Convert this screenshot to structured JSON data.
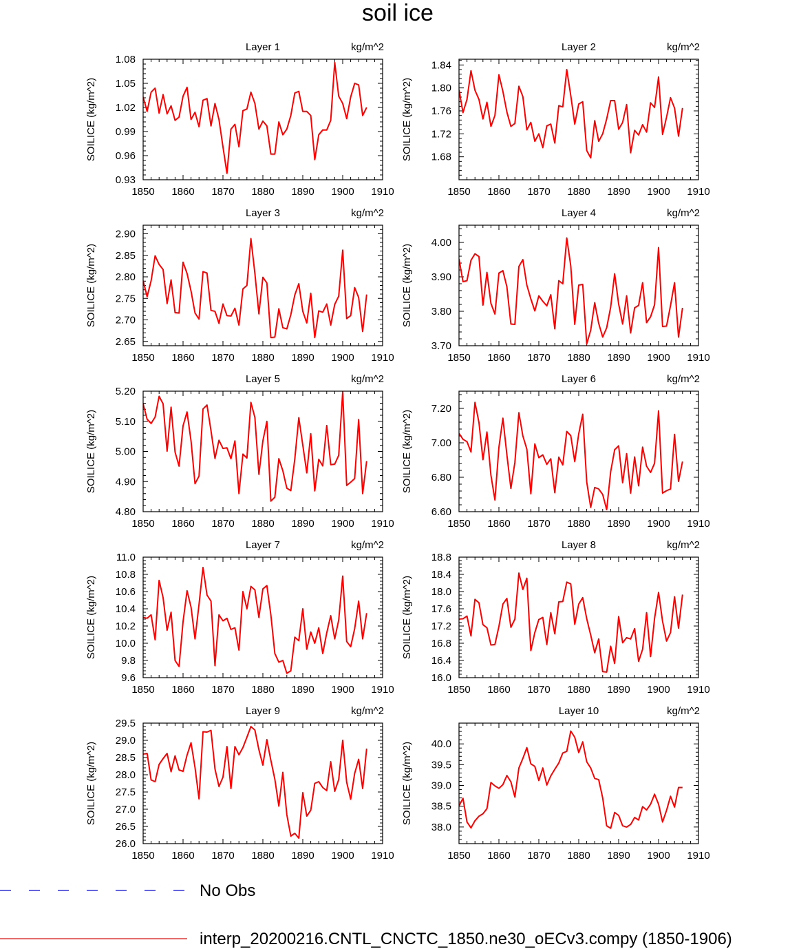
{
  "figure": {
    "title": "soil ice",
    "x_start": 1850
  },
  "legend": {
    "items": [
      {
        "label": "No Obs",
        "color": "#0000ff",
        "style": "dashed"
      },
      {
        "label": "interp_20200216.CNTL_CNCTC_1850.ne30_oECv3.compy (1850-1906)",
        "color": "#ff0000",
        "style": "solid"
      }
    ]
  },
  "chart_data": [
    {
      "type": "line",
      "title": "Layer 1",
      "units": "kg/m^2",
      "ylabel": "SOILICE  (kg/m^2)",
      "xlim": [
        1850,
        1910
      ],
      "xticks": [
        1850,
        1860,
        1870,
        1880,
        1890,
        1900,
        1910
      ],
      "ylim": [
        0.93,
        1.08
      ],
      "yticks": [
        "0.93",
        "0.96",
        "0.99",
        "1.02",
        "1.05",
        "1.08"
      ],
      "series": [
        {
          "color": "#ff0000",
          "values": [
            1.033,
            1.015,
            1.039,
            1.044,
            1.013,
            1.036,
            1.012,
            1.022,
            1.004,
            1.008,
            1.034,
            1.045,
            1.005,
            1.014,
            0.996,
            1.029,
            1.031,
            0.997,
            1.025,
            1.005,
            0.971,
            0.938,
            0.993,
            0.999,
            0.971,
            1.016,
            1.018,
            1.039,
            1.025,
            0.993,
            1.003,
            0.997,
            0.962,
            0.962,
            1.002,
            0.986,
            0.993,
            1.01,
            1.038,
            1.04,
            1.015,
            1.015,
            1.01,
            0.955,
            0.986,
            0.992,
            0.992,
            1.004,
            1.076,
            1.034,
            1.025,
            1.006,
            1.033,
            1.05,
            1.048,
            1.01,
            1.02
          ]
        }
      ]
    },
    {
      "type": "line",
      "title": "Layer 2",
      "units": "kg/m^2",
      "ylabel": "SOILICE  (kg/m^2)",
      "xlim": [
        1850,
        1910
      ],
      "xticks": [
        1850,
        1860,
        1870,
        1880,
        1890,
        1900,
        1910
      ],
      "ylim": [
        1.64,
        1.85
      ],
      "yticks": [
        "1.68",
        "1.72",
        "1.76",
        "1.80",
        "1.84"
      ],
      "series": [
        {
          "color": "#ff0000",
          "values": [
            1.797,
            1.757,
            1.78,
            1.83,
            1.796,
            1.78,
            1.746,
            1.775,
            1.733,
            1.752,
            1.823,
            1.794,
            1.758,
            1.733,
            1.738,
            1.803,
            1.785,
            1.727,
            1.74,
            1.707,
            1.72,
            1.696,
            1.734,
            1.737,
            1.704,
            1.769,
            1.767,
            1.832,
            1.787,
            1.737,
            1.772,
            1.776,
            1.691,
            1.678,
            1.743,
            1.707,
            1.72,
            1.746,
            1.778,
            1.778,
            1.728,
            1.74,
            1.771,
            1.687,
            1.726,
            1.718,
            1.736,
            1.723,
            1.774,
            1.766,
            1.819,
            1.719,
            1.749,
            1.783,
            1.765,
            1.716,
            1.765
          ]
        }
      ]
    },
    {
      "type": "line",
      "title": "Layer 3",
      "units": "kg/m^2",
      "ylabel": "SOILICE  (kg/m^2)",
      "xlim": [
        1850,
        1910
      ],
      "xticks": [
        1850,
        1860,
        1870,
        1880,
        1890,
        1900,
        1910
      ],
      "ylim": [
        2.64,
        2.92
      ],
      "yticks": [
        "2.65",
        "2.70",
        "2.75",
        "2.80",
        "2.85",
        "2.90"
      ],
      "series": [
        {
          "color": "#ff0000",
          "values": [
            2.791,
            2.754,
            2.791,
            2.849,
            2.829,
            2.817,
            2.738,
            2.793,
            2.717,
            2.716,
            2.834,
            2.808,
            2.767,
            2.716,
            2.702,
            2.812,
            2.809,
            2.722,
            2.72,
            2.692,
            2.737,
            2.71,
            2.709,
            2.727,
            2.688,
            2.772,
            2.78,
            2.889,
            2.808,
            2.714,
            2.799,
            2.786,
            2.659,
            2.66,
            2.726,
            2.682,
            2.679,
            2.712,
            2.758,
            2.784,
            2.72,
            2.693,
            2.762,
            2.659,
            2.721,
            2.718,
            2.737,
            2.688,
            2.736,
            2.755,
            2.862,
            2.703,
            2.71,
            2.775,
            2.752,
            2.673,
            2.759
          ]
        }
      ]
    },
    {
      "type": "line",
      "title": "Layer 4",
      "units": "kg/m^2",
      "ylabel": "SOILICE  (kg/m^2)",
      "xlim": [
        1850,
        1910
      ],
      "xticks": [
        1850,
        1860,
        1870,
        1880,
        1890,
        1900,
        1910
      ],
      "ylim": [
        3.7,
        4.05
      ],
      "yticks": [
        "3.70",
        "3.80",
        "3.90",
        "4.00"
      ],
      "series": [
        {
          "color": "#ff0000",
          "values": [
            3.952,
            3.886,
            3.889,
            3.948,
            3.967,
            3.959,
            3.818,
            3.913,
            3.823,
            3.792,
            3.911,
            3.918,
            3.871,
            3.763,
            3.762,
            3.93,
            3.95,
            3.876,
            3.836,
            3.801,
            3.845,
            3.829,
            3.816,
            3.848,
            3.749,
            3.889,
            3.88,
            4.013,
            3.932,
            3.762,
            3.876,
            3.878,
            3.705,
            3.745,
            3.825,
            3.765,
            3.725,
            3.752,
            3.812,
            3.909,
            3.821,
            3.763,
            3.845,
            3.737,
            3.81,
            3.817,
            3.883,
            3.767,
            3.784,
            3.819,
            3.985,
            3.756,
            3.757,
            3.817,
            3.883,
            3.725,
            3.81
          ]
        }
      ]
    },
    {
      "type": "line",
      "title": "Layer 5",
      "units": "kg/m^2",
      "ylabel": "SOILICE  (kg/m^2)",
      "xlim": [
        1850,
        1910
      ],
      "xticks": [
        1850,
        1860,
        1870,
        1880,
        1890,
        1900,
        1910
      ],
      "ylim": [
        4.8,
        5.2
      ],
      "yticks": [
        "4.80",
        "4.90",
        "5.00",
        "5.10",
        "5.20"
      ],
      "series": [
        {
          "color": "#ff0000",
          "values": [
            5.158,
            5.107,
            5.093,
            5.114,
            5.183,
            5.158,
            5.001,
            5.147,
            4.998,
            4.951,
            5.085,
            5.131,
            5.035,
            4.893,
            4.918,
            5.141,
            5.154,
            5.069,
            4.977,
            5.037,
            5.01,
            5.012,
            4.976,
            5.035,
            4.86,
            4.991,
            4.978,
            5.163,
            5.113,
            4.924,
            5.035,
            5.1,
            4.835,
            4.848,
            4.976,
            4.936,
            4.878,
            4.87,
            4.975,
            5.112,
            5.021,
            4.929,
            5.059,
            4.869,
            4.974,
            4.952,
            5.086,
            4.956,
            4.958,
            4.987,
            5.198,
            4.887,
            4.898,
            4.91,
            5.106,
            4.86,
            4.968
          ]
        }
      ]
    },
    {
      "type": "line",
      "title": "Layer 6",
      "units": "kg/m^2",
      "ylabel": "SOILICE  (kg/m^2)",
      "xlim": [
        1850,
        1910
      ],
      "xticks": [
        1850,
        1860,
        1870,
        1880,
        1890,
        1900,
        1910
      ],
      "ylim": [
        6.6,
        7.3
      ],
      "yticks": [
        "6.60",
        "6.80",
        "7.00",
        "7.20"
      ],
      "series": [
        {
          "color": "#ff0000",
          "values": [
            7.055,
            7.021,
            7.007,
            6.947,
            7.235,
            7.118,
            6.902,
            7.063,
            6.812,
            6.668,
            6.974,
            7.143,
            6.93,
            6.735,
            6.886,
            7.175,
            7.04,
            6.963,
            6.704,
            6.994,
            6.914,
            6.93,
            6.875,
            6.907,
            6.71,
            6.917,
            6.872,
            7.066,
            7.042,
            6.891,
            7.053,
            7.166,
            6.773,
            6.625,
            6.741,
            6.732,
            6.7,
            6.612,
            6.832,
            6.96,
            6.983,
            6.768,
            6.937,
            6.708,
            6.918,
            6.75,
            6.975,
            6.864,
            6.828,
            6.881,
            7.186,
            6.708,
            6.722,
            6.732,
            7.049,
            6.776,
            6.891
          ]
        }
      ]
    },
    {
      "type": "line",
      "title": "Layer 7",
      "units": "kg/m^2",
      "ylabel": "SOILICE  (kg/m^2)",
      "xlim": [
        1850,
        1910
      ],
      "xticks": [
        1850,
        1860,
        1870,
        1880,
        1890,
        1900,
        1910
      ],
      "ylim": [
        9.6,
        11.0
      ],
      "yticks": [
        "9.6",
        "9.8",
        "10.0",
        "10.2",
        "10.4",
        "10.6",
        "10.8",
        "11.0"
      ],
      "series": [
        {
          "color": "#ff0000",
          "values": [
            10.3,
            10.29,
            10.33,
            10.04,
            10.73,
            10.53,
            10.15,
            10.36,
            9.8,
            9.73,
            10.25,
            10.61,
            10.42,
            10.05,
            10.45,
            10.88,
            10.56,
            10.49,
            9.74,
            10.33,
            10.26,
            10.29,
            10.16,
            10.18,
            9.92,
            10.6,
            10.4,
            10.66,
            10.62,
            10.3,
            10.63,
            10.67,
            10.33,
            9.88,
            9.78,
            9.8,
            9.65,
            9.68,
            10.07,
            10.03,
            10.4,
            9.93,
            10.13,
            10.0,
            10.18,
            9.88,
            10.12,
            10.32,
            10.05,
            10.27,
            10.78,
            10.02,
            9.96,
            10.17,
            10.49,
            10.05,
            10.35
          ]
        }
      ]
    },
    {
      "type": "line",
      "title": "Layer 8",
      "units": "kg/m^2",
      "ylabel": "SOILICE  (kg/m^2)",
      "xlim": [
        1850,
        1910
      ],
      "xticks": [
        1850,
        1860,
        1870,
        1880,
        1890,
        1900,
        1910
      ],
      "ylim": [
        16.0,
        18.8
      ],
      "yticks": [
        "16.0",
        "16.4",
        "16.8",
        "17.2",
        "17.6",
        "18.0",
        "18.4",
        "18.8"
      ],
      "series": [
        {
          "color": "#ff0000",
          "values": [
            17.36,
            17.37,
            17.43,
            16.97,
            17.82,
            17.74,
            17.23,
            17.16,
            16.76,
            16.77,
            17.19,
            17.71,
            17.84,
            17.17,
            17.36,
            18.43,
            18.05,
            18.31,
            16.63,
            17.05,
            17.35,
            17.4,
            16.77,
            17.51,
            17.02,
            17.76,
            17.77,
            18.22,
            18.18,
            17.24,
            17.71,
            17.86,
            17.37,
            16.99,
            16.58,
            16.9,
            16.14,
            16.13,
            16.73,
            16.33,
            17.42,
            16.81,
            16.93,
            16.9,
            17.14,
            16.38,
            16.66,
            17.51,
            16.49,
            17.38,
            17.98,
            17.31,
            16.85,
            17.05,
            17.88,
            17.15,
            17.93
          ]
        }
      ]
    },
    {
      "type": "line",
      "title": "Layer 9",
      "units": "kg/m^2",
      "ylabel": "SOILICE  (kg/m^2)",
      "xlim": [
        1850,
        1910
      ],
      "xticks": [
        1850,
        1860,
        1870,
        1880,
        1890,
        1900,
        1910
      ],
      "ylim": [
        26.0,
        29.5
      ],
      "yticks": [
        "26.0",
        "26.5",
        "27.0",
        "27.5",
        "28.0",
        "28.5",
        "29.0",
        "29.5"
      ],
      "series": [
        {
          "color": "#ff0000",
          "values": [
            28.6,
            28.62,
            27.85,
            27.8,
            28.3,
            28.47,
            28.62,
            28.09,
            28.55,
            28.14,
            28.1,
            28.57,
            28.93,
            28.21,
            27.3,
            29.25,
            29.24,
            29.29,
            28.17,
            27.66,
            27.93,
            28.82,
            27.6,
            28.82,
            28.58,
            28.79,
            29.09,
            29.4,
            29.3,
            28.73,
            28.28,
            29.02,
            28.42,
            27.87,
            27.09,
            28.07,
            26.84,
            26.22,
            26.3,
            26.16,
            27.48,
            26.8,
            26.97,
            27.75,
            27.8,
            27.63,
            27.54,
            28.38,
            27.52,
            27.86,
            29.0,
            27.78,
            27.29,
            28.04,
            28.45,
            27.6,
            28.76
          ]
        }
      ]
    },
    {
      "type": "line",
      "title": "Layer 10",
      "units": "kg/m^2",
      "ylabel": "SOILICE  (kg/m^2)",
      "xlim": [
        1850,
        1910
      ],
      "xticks": [
        1850,
        1860,
        1870,
        1880,
        1890,
        1900,
        1910
      ],
      "ylim": [
        37.6,
        40.5
      ],
      "yticks": [
        "38.0",
        "38.5",
        "39.0",
        "39.5",
        "40.0"
      ],
      "series": [
        {
          "color": "#ff0000",
          "values": [
            38.51,
            38.69,
            38.12,
            37.98,
            38.15,
            38.26,
            38.32,
            38.44,
            39.07,
            38.99,
            38.93,
            39.02,
            39.24,
            39.09,
            38.72,
            39.42,
            39.65,
            39.91,
            39.52,
            39.46,
            39.12,
            39.42,
            39.01,
            39.23,
            39.39,
            39.54,
            39.78,
            39.82,
            40.31,
            40.16,
            39.79,
            40.05,
            39.57,
            39.42,
            39.17,
            39.14,
            38.7,
            38.03,
            37.97,
            38.35,
            38.28,
            38.03,
            38.0,
            38.06,
            38.23,
            38.17,
            38.49,
            38.41,
            38.55,
            38.79,
            38.55,
            38.12,
            38.4,
            38.74,
            38.48,
            38.95,
            38.95
          ]
        }
      ]
    }
  ]
}
